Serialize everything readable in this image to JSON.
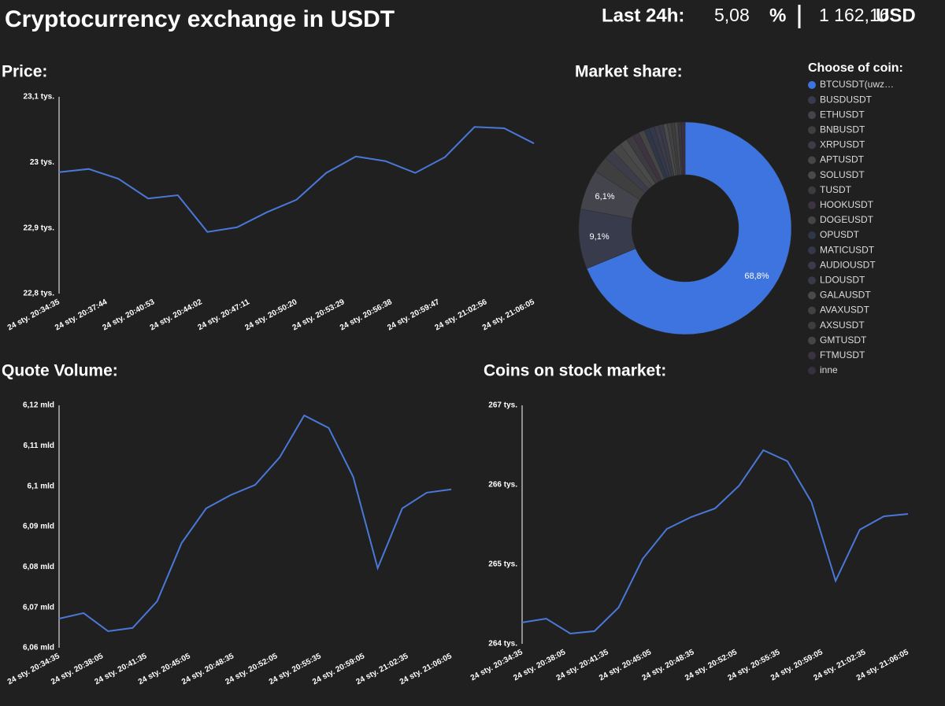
{
  "header": {
    "title": "Cryptocurrency exchange in USDT",
    "last_label": "Last 24h:",
    "change": {
      "value": 5.08,
      "label": "5,08"
    },
    "change_unit": "%",
    "amount": {
      "value": 1162.16,
      "label": "1 162,16"
    },
    "amount_unit": "USD"
  },
  "chart_data": [
    {
      "type": "line",
      "title": "Price:",
      "color": "#4a78d8",
      "xticks": [
        "24 sty. 20:34:35",
        "24 sty. 20:37:44",
        "24 sty. 20:40:53",
        "24 sty. 20:44:02",
        "24 sty. 20:47:11",
        "24 sty. 20:50:20",
        "24 sty. 20:53:29",
        "24 sty. 20:56:38",
        "24 sty. 20:59:47",
        "24 sty. 21:02:56",
        "24 sty. 21:06:05"
      ],
      "values": [
        22985,
        22990,
        22975,
        22945,
        22950,
        22894,
        22901,
        22924,
        22943,
        22984,
        23009,
        23002,
        22984,
        23008,
        23054,
        23052,
        23029
      ],
      "ylim": [
        22800,
        23100
      ],
      "yticks": [
        {
          "value": 22800,
          "label": "22,8 tys."
        },
        {
          "value": 22900,
          "label": "22,9 tys."
        },
        {
          "value": 23000,
          "label": "23 tys."
        },
        {
          "value": 23100,
          "label": "23,1 tys."
        }
      ]
    },
    {
      "type": "pie",
      "title": "Market share:",
      "legend_title": "Choose of coin:",
      "categories": [
        "BTCUSDT(uwz…",
        "BUSDUSDT",
        "ETHUSDT",
        "BNBUSDT",
        "XRPUSDT",
        "APTUSDT",
        "SOLUSDT",
        "TUSDT",
        "HOOKUSDT",
        "DOGEUSDT",
        "OPUSDT",
        "MATICUSDT",
        "AUDIOUSDT",
        "LDOUSDT",
        "GALAUSDT",
        "AVAXUSDT",
        "AXSUSDT",
        "GMTUSDT",
        "FTMUSDT",
        "inne"
      ],
      "values": [
        68.8,
        9.1,
        6.1,
        2.5,
        1.6,
        1.4,
        1.2,
        1.1,
        1.0,
        0.9,
        0.8,
        0.8,
        0.7,
        0.7,
        0.6,
        0.6,
        0.5,
        0.5,
        0.5,
        0.6
      ],
      "value_labels": [
        "68,8%",
        "9,1%",
        "6,1%",
        null,
        null,
        null,
        null,
        null,
        null,
        null,
        null,
        null,
        null,
        null,
        null,
        null,
        null,
        null,
        null,
        null
      ],
      "colors": [
        "#3d74e0",
        "#383b4c",
        "#43444c",
        "#3f3f3f",
        "#3c3d48",
        "#464646",
        "#4a4a4a",
        "#3b3b40",
        "#3e3340",
        "#454545",
        "#2f3648",
        "#34384a",
        "#3b3b4a",
        "#383a48",
        "#4a4a4a",
        "#424242",
        "#3e3e3e",
        "#454545",
        "#3a3340",
        "#363040"
      ]
    },
    {
      "type": "line",
      "title": "Quote Volume:",
      "color": "#4a78d8",
      "xticks": [
        "24 sty. 20:34:35",
        "24 sty. 20:38:05",
        "24 sty. 20:41:35",
        "24 sty. 20:45:05",
        "24 sty. 20:48:35",
        "24 sty. 20:52:05",
        "24 sty. 20:55:35",
        "24 sty. 20:59:05",
        "24 sty. 21:02:35",
        "24 sty. 21:06:05"
      ],
      "values": [
        6067200000,
        6068600000,
        6064100000,
        6064900000,
        6071500000,
        6085900000,
        6094500000,
        6097800000,
        6100300000,
        6107100000,
        6117500000,
        6114400000,
        6102300000,
        6079700000,
        6094500000,
        6098400000,
        6099200000
      ],
      "ylim": [
        6060000000,
        6120000000
      ],
      "yticks": [
        {
          "value": 6060000000,
          "label": "6,06 mld"
        },
        {
          "value": 6070000000,
          "label": "6,07 mld"
        },
        {
          "value": 6080000000,
          "label": "6,08 mld"
        },
        {
          "value": 6090000000,
          "label": "6,09 mld"
        },
        {
          "value": 6100000000,
          "label": "6,1 mld"
        },
        {
          "value": 6110000000,
          "label": "6,11 mld"
        },
        {
          "value": 6120000000,
          "label": "6,12 mld"
        }
      ]
    },
    {
      "type": "line",
      "title": "Coins on stock market:",
      "color": "#4a78d8",
      "xticks": [
        "24 sty. 20:34:35",
        "24 sty. 20:38:05",
        "24 sty. 20:41:35",
        "24 sty. 20:45:05",
        "24 sty. 20:48:35",
        "24 sty. 20:52:05",
        "24 sty. 20:55:35",
        "24 sty. 20:59:05",
        "24 sty. 21:02:35",
        "24 sty. 21:06:05"
      ],
      "values": [
        264268,
        264317,
        264129,
        264159,
        264456,
        265069,
        265446,
        265594,
        265703,
        265990,
        266436,
        266297,
        265782,
        264792,
        265436,
        265604,
        265634
      ],
      "ylim": [
        264000,
        267000
      ],
      "yticks": [
        {
          "value": 264000,
          "label": "264 tys."
        },
        {
          "value": 265000,
          "label": "265 tys."
        },
        {
          "value": 266000,
          "label": "266 tys."
        },
        {
          "value": 267000,
          "label": "267 tys."
        }
      ]
    }
  ]
}
